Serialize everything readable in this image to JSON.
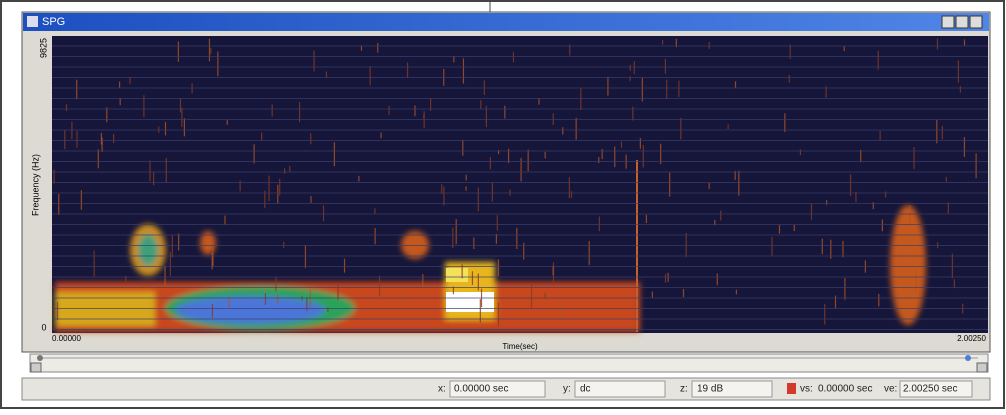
{
  "window": {
    "title": "SPG"
  },
  "plot": {
    "y_axis_label": "Frequency (Hz)",
    "y_max_label": "9825",
    "y_min_label": "0",
    "x_axis_label": "Time(sec)",
    "x_min_label": "0.00000",
    "x_max_label": "2.00250"
  },
  "status": {
    "x_label": "x:",
    "x_value": "0.00000 sec",
    "y_label": "y:",
    "y_value": "dc",
    "z_label": "z:",
    "z_value": "19 dB",
    "vs_label": "vs:",
    "vs_value": "0.00000 sec",
    "ve_label": "ve:",
    "ve_value": "2.00250 sec"
  }
}
